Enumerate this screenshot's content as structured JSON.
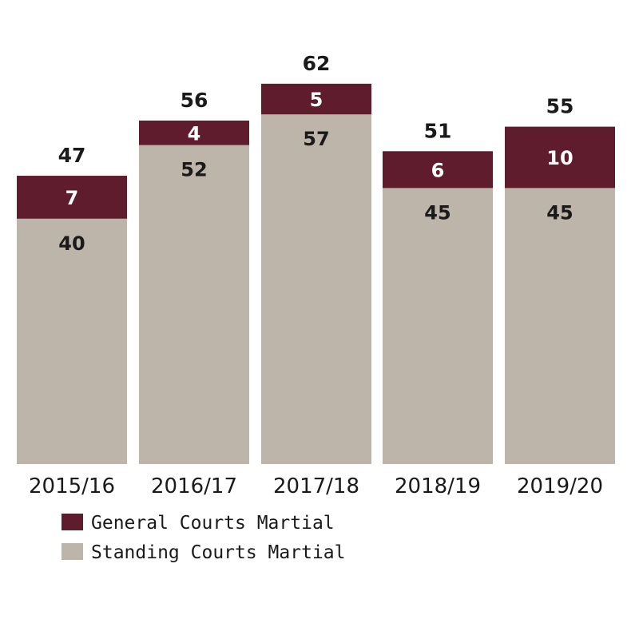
{
  "colors": {
    "general": "#5e1c2d",
    "standing": "#bdb5aa"
  },
  "chart_data": {
    "type": "bar",
    "stacked": true,
    "categories": [
      "2015/16",
      "2016/17",
      "2017/18",
      "2018/19",
      "2019/20"
    ],
    "series": [
      {
        "name": "Standing Courts Martial",
        "values": [
          40,
          52,
          57,
          45,
          45
        ]
      },
      {
        "name": "General Courts Martial",
        "values": [
          7,
          4,
          5,
          6,
          10
        ]
      }
    ],
    "totals": [
      47,
      56,
      62,
      51,
      55
    ],
    "legend_position": "bottom-left",
    "grid": false
  },
  "legend": {
    "items": [
      {
        "label": "General Courts Martial",
        "color_key": "general"
      },
      {
        "label": "Standing Courts Martial",
        "color_key": "standing"
      }
    ]
  }
}
